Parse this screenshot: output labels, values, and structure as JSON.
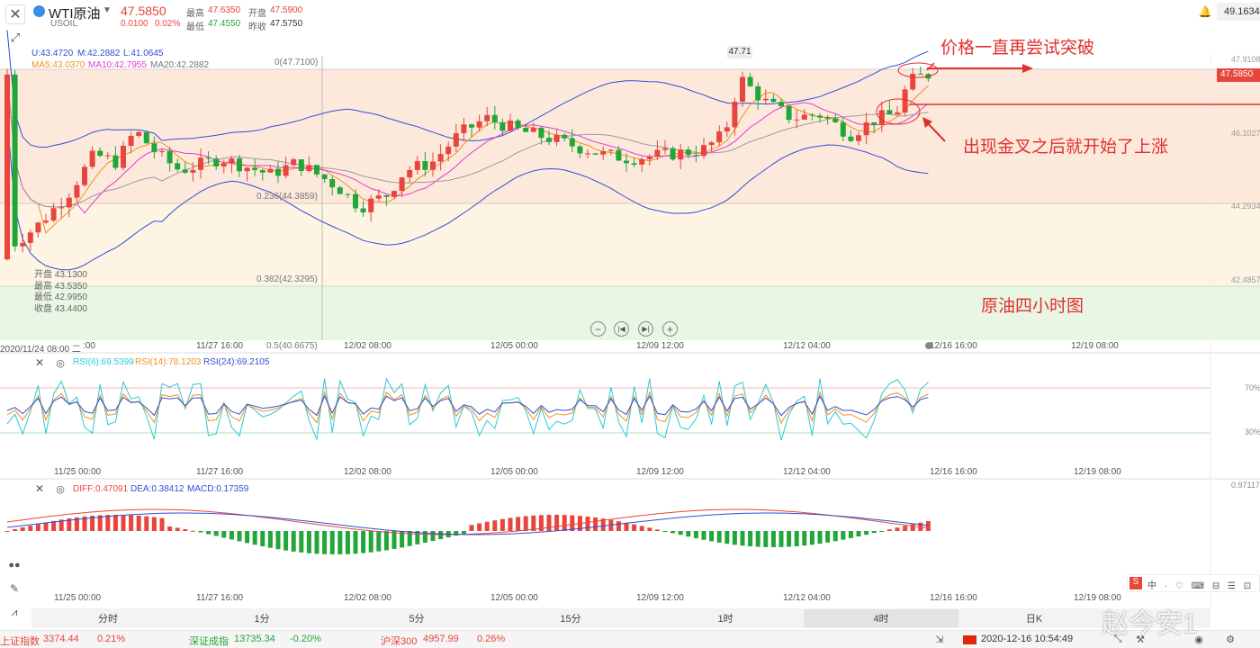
{
  "header": {
    "symbol_name": "WTI原油",
    "symbol_code": "USOIL",
    "price": "47.5850",
    "change": "0.0100",
    "change_pct": "0.02%",
    "high_label": "最高",
    "high": "47.6350",
    "low_label": "最低",
    "low": "47.4550",
    "open_label": "开盘",
    "open": "47.5900",
    "prev_close_label": "昨收",
    "prev_close": "47.5750",
    "right_value": "49.1634"
  },
  "indicators": {
    "boll": {
      "u": "U:43.4720",
      "m": "M:42.2882",
      "l": "L:41.0645"
    },
    "ma": {
      "ma5": "MA5:43.0370",
      "ma10": "MA10:42.7955",
      "ma20": "MA20:42.2882"
    }
  },
  "price_axis": {
    "ticks": [
      "47.9108",
      "46.1027",
      "44.2934",
      "42.4857"
    ],
    "current_tag": "47.5850",
    "peak_label": "47.71"
  },
  "fib_levels": [
    {
      "label": "0(47.7100)"
    },
    {
      "label": "0.236(44.3859)"
    },
    {
      "label": "0.382(42.3295)"
    },
    {
      "label": "0.5(40.6675)"
    }
  ],
  "ohlc_box": {
    "open": "开盘 43.1300",
    "high": "最高 43.5350",
    "low": "最低 42.9950",
    "close": "收盘 43.4400"
  },
  "annotations": {
    "breakout": "价格一直再尝试突破",
    "golden_cross": "出现金叉之后就开始了上涨",
    "chart_title": "原油四小时图"
  },
  "time_axis_main": [
    "2020/11/24 08:00 二",
    ":00",
    "11/27 16:00",
    "12/02 08:00",
    "12/05 00:00",
    "12/09 12:00",
    "12/12 04:00",
    "12/16 16:00",
    "12/19 08:00"
  ],
  "time_axis_sub": [
    "11/25 00:00",
    "11/27 16:00",
    "12/02 08:00",
    "12/05 00:00",
    "12/09 12:00",
    "12/12 04:00",
    "12/16 16:00",
    "12/19 08:00"
  ],
  "rsi": {
    "rsi6": "RSI(6):69.5399",
    "rsi14": "RSI(14):78.1203",
    "rsi24": "RSI(24):69.2105",
    "axis_high": "70%",
    "axis_low": "30%"
  },
  "macd": {
    "diff": "DIFF:0.47091",
    "dea": "DEA:0.38412",
    "macd": "MACD:0.17359",
    "axis_top": "0.97117"
  },
  "timeframes": [
    "分时",
    "1分",
    "5分",
    "15分",
    "1时",
    "4时",
    "日K"
  ],
  "active_timeframe": 5,
  "status_bar": {
    "idx1_name": "上证指数",
    "idx1_val": "3374.44",
    "idx1_pct": "0.21%",
    "idx2_name": "深证成指",
    "idx2_val": "13735.34",
    "idx2_pct": "-0.20%",
    "idx3_name": "沪深300",
    "idx3_val": "4957.99",
    "idx3_pct": "0.26%",
    "datetime": "2020-12-16 10:54:49"
  },
  "watermark": "赵今安1",
  "colors": {
    "up": "#e8453c",
    "down": "#21a637",
    "boll": "#2f4fd6",
    "ma5": "#f0901c",
    "ma10": "#e33bd0",
    "ma20": "#9a9aa8",
    "annotation": "#e0302c"
  }
}
